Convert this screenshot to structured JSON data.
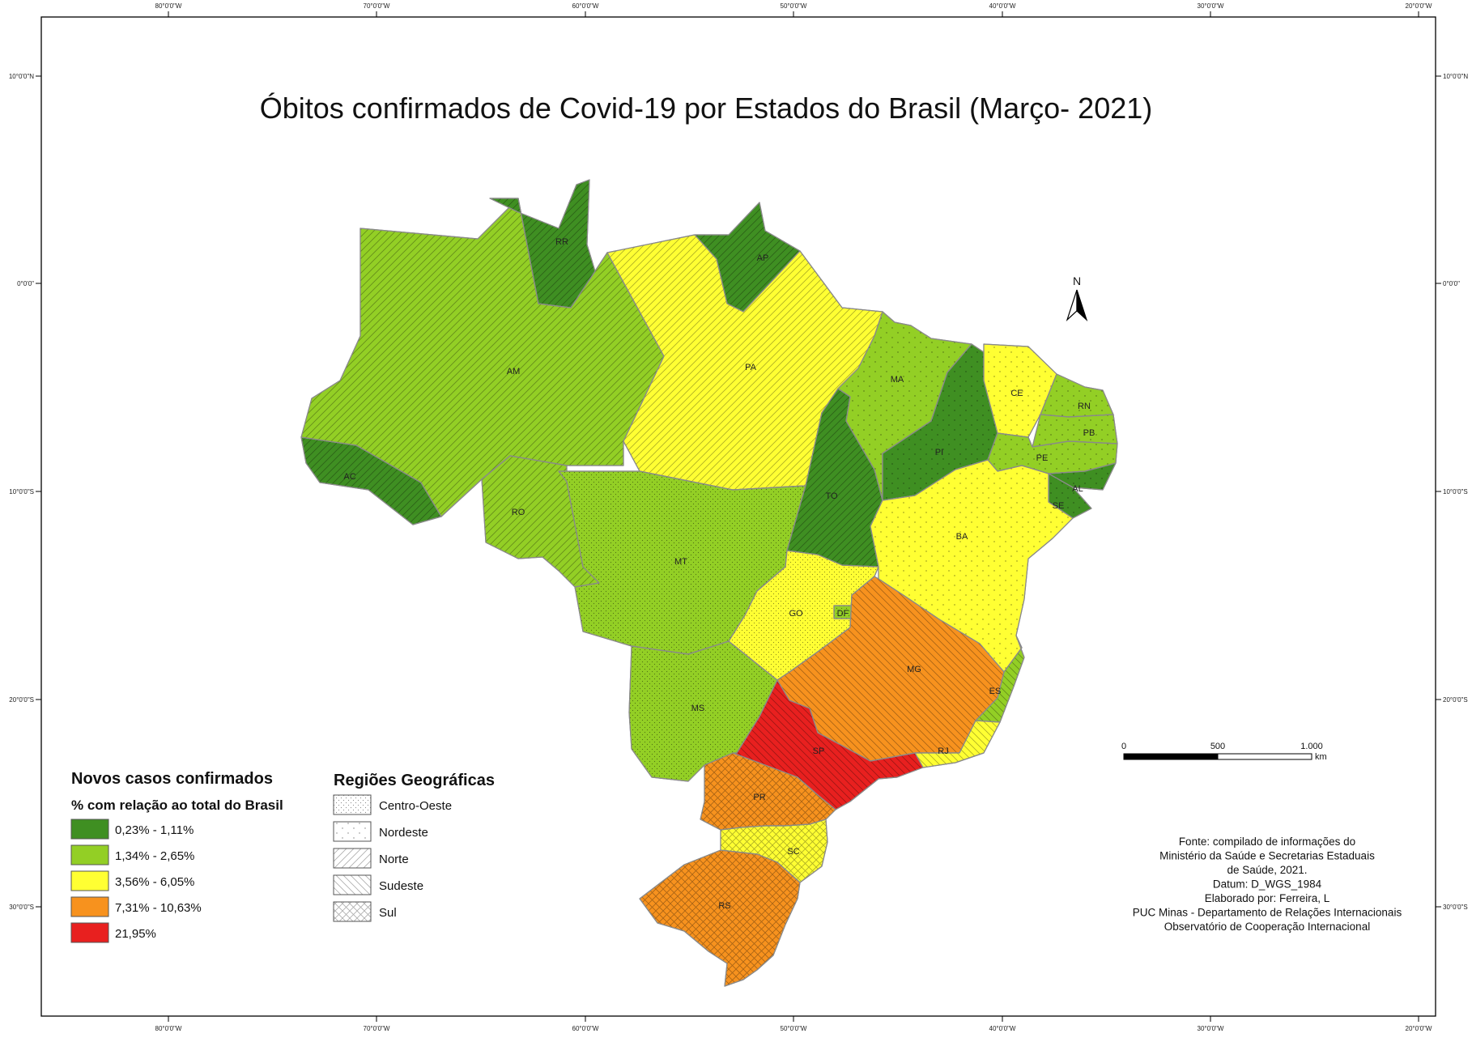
{
  "title": "Óbitos confirmados de Covid-19 por Estados do Brasil (Março- 2021)",
  "colors": {
    "class1": "#3f8f22",
    "class2": "#93cf25",
    "class3": "#ffff33",
    "class4": "#f7921e",
    "class5": "#e8201f",
    "border": "#8a8a8a"
  },
  "coordinates": {
    "longitudes": [
      "80°0'0\"W",
      "70°0'0\"W",
      "60°0'0\"W",
      "50°0'0\"W",
      "40°0'0\"W",
      "30°0'0\"W",
      "20°0'0\"W"
    ],
    "latitudes": [
      "10°0'0\"N",
      "0°0'0\"",
      "10°0'0\"S",
      "20°0'0\"S",
      "30°0'0\"S"
    ]
  },
  "states": [
    {
      "id": "AC",
      "label": "AC",
      "class": 1,
      "region": "norte"
    },
    {
      "id": "AM",
      "label": "AM",
      "class": 2,
      "region": "norte"
    },
    {
      "id": "RR",
      "label": "RR",
      "class": 1,
      "region": "norte"
    },
    {
      "id": "AP",
      "label": "AP",
      "class": 1,
      "region": "norte"
    },
    {
      "id": "PA",
      "label": "PA",
      "class": 3,
      "region": "norte"
    },
    {
      "id": "RO",
      "label": "RO",
      "class": 2,
      "region": "norte"
    },
    {
      "id": "TO",
      "label": "TO",
      "class": 1,
      "region": "norte"
    },
    {
      "id": "MA",
      "label": "MA",
      "class": 2,
      "region": "nordeste"
    },
    {
      "id": "PI",
      "label": "PI",
      "class": 1,
      "region": "nordeste"
    },
    {
      "id": "CE",
      "label": "CE",
      "class": 3,
      "region": "nordeste"
    },
    {
      "id": "RN",
      "label": "RN",
      "class": 2,
      "region": "nordeste"
    },
    {
      "id": "PB",
      "label": "PB",
      "class": 2,
      "region": "nordeste"
    },
    {
      "id": "PE",
      "label": "PE",
      "class": 2,
      "region": "nordeste"
    },
    {
      "id": "AL",
      "label": "AL",
      "class": 1,
      "region": "nordeste"
    },
    {
      "id": "SE",
      "label": "SE",
      "class": 1,
      "region": "nordeste"
    },
    {
      "id": "BA",
      "label": "BA",
      "class": 3,
      "region": "nordeste"
    },
    {
      "id": "MT",
      "label": "MT",
      "class": 2,
      "region": "centro-oeste"
    },
    {
      "id": "MS",
      "label": "MS",
      "class": 2,
      "region": "centro-oeste"
    },
    {
      "id": "GO",
      "label": "GO",
      "class": 3,
      "region": "centro-oeste"
    },
    {
      "id": "DF",
      "label": "DF",
      "class": 2,
      "region": "centro-oeste"
    },
    {
      "id": "MG",
      "label": "MG",
      "class": 4,
      "region": "sudeste"
    },
    {
      "id": "ES",
      "label": "ES",
      "class": 2,
      "region": "sudeste"
    },
    {
      "id": "RJ",
      "label": "RJ",
      "class": 3,
      "region": "sudeste"
    },
    {
      "id": "SP",
      "label": "SP",
      "class": 5,
      "region": "sudeste"
    },
    {
      "id": "PR",
      "label": "PR",
      "class": 4,
      "region": "sul"
    },
    {
      "id": "SC",
      "label": "SC",
      "class": 3,
      "region": "sul"
    },
    {
      "id": "RS",
      "label": "RS",
      "class": 4,
      "region": "sul"
    }
  ],
  "legend_cases": {
    "title": "Novos casos confirmados",
    "subtitle": "% com relação ao total do Brasil",
    "items": [
      {
        "label": "0,23% - 1,11%",
        "color": "#3f8f22"
      },
      {
        "label": "1,34% - 2,65%",
        "color": "#93cf25"
      },
      {
        "label": "3,56% - 6,05%",
        "color": "#ffff33"
      },
      {
        "label": "7,31% - 10,63%",
        "color": "#f7921e"
      },
      {
        "label": "21,95%",
        "color": "#e8201f"
      }
    ]
  },
  "legend_regions": {
    "title": "Regiões Geográficas",
    "items": [
      {
        "label": "Centro-Oeste",
        "pattern": "centro-oeste"
      },
      {
        "label": "Nordeste",
        "pattern": "nordeste"
      },
      {
        "label": "Norte",
        "pattern": "norte"
      },
      {
        "label": "Sudeste",
        "pattern": "sudeste"
      },
      {
        "label": "Sul",
        "pattern": "sul"
      }
    ]
  },
  "north_label": "N",
  "scale_bar": {
    "labels": [
      "0",
      "500",
      "1.000"
    ],
    "unit": "km"
  },
  "source": [
    "Fonte: compilado de informações do",
    "Ministério da Saúde e Secretarias Estaduais",
    "de Saúde, 2021.",
    "Datum: D_WGS_1984",
    "Elaborado por: Ferreira, L",
    "PUC Minas - Departamento de Relações Internacionais",
    "Observatório de Cooperação Internacional"
  ]
}
